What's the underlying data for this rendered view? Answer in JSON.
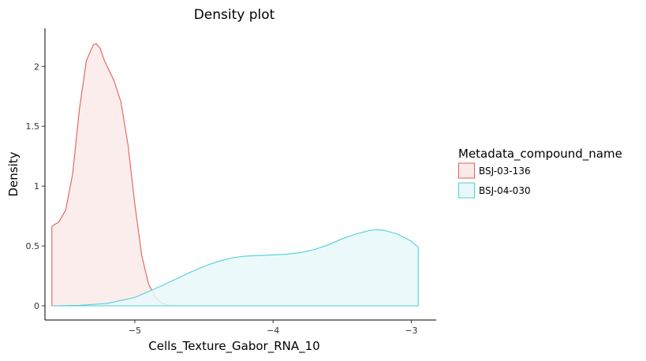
{
  "chart_data": {
    "type": "area",
    "title": "Density plot",
    "xlabel": "Cells_Texture_Gabor_RNA_10",
    "ylabel": "Density",
    "xlim": [
      -5.65,
      -2.82
    ],
    "ylim": [
      0,
      2.3
    ],
    "x_ticks": [
      -5,
      -4,
      -3
    ],
    "x_tick_labels": [
      "−5",
      "−4",
      "−3"
    ],
    "y_ticks": [
      0,
      0.5,
      1,
      1.5,
      2
    ],
    "y_tick_labels": [
      "0",
      "0.5",
      "1",
      "1.5",
      "2"
    ],
    "grid": false,
    "legend": {
      "title": "Metadata_compound_name",
      "position": "right"
    },
    "series": [
      {
        "name": "BSJ-03-136",
        "color": "#e0605a",
        "fill": "#fbeaea",
        "x": [
          -5.6,
          -5.58,
          -5.55,
          -5.5,
          -5.45,
          -5.4,
          -5.35,
          -5.3,
          -5.28,
          -5.25,
          -5.22,
          -5.2,
          -5.15,
          -5.1,
          -5.05,
          -5.0,
          -4.95,
          -4.9,
          -4.85,
          -4.8,
          -4.75,
          -4.7,
          -4.6,
          -4.2,
          -3.8,
          -3.4,
          -2.95
        ],
        "y": [
          0.66,
          0.68,
          0.7,
          0.8,
          1.1,
          1.65,
          2.05,
          2.18,
          2.19,
          2.15,
          2.05,
          2.0,
          1.88,
          1.7,
          1.35,
          0.85,
          0.42,
          0.18,
          0.07,
          0.02,
          0.005,
          0.002,
          0.001,
          0.0,
          0.0,
          0.0,
          0.0
        ]
      },
      {
        "name": "BSJ-04-030",
        "color": "#4fd0d8",
        "fill": "#e8f8f9",
        "x": [
          -5.6,
          -5.4,
          -5.2,
          -5.0,
          -4.8,
          -4.6,
          -4.5,
          -4.4,
          -4.3,
          -4.2,
          -4.1,
          -4.0,
          -3.9,
          -3.8,
          -3.7,
          -3.6,
          -3.5,
          -3.4,
          -3.3,
          -3.25,
          -3.2,
          -3.1,
          -3.0,
          -2.95
        ],
        "y": [
          0.0,
          0.004,
          0.02,
          0.07,
          0.17,
          0.28,
          0.33,
          0.37,
          0.4,
          0.415,
          0.42,
          0.425,
          0.432,
          0.445,
          0.47,
          0.51,
          0.56,
          0.6,
          0.63,
          0.635,
          0.632,
          0.6,
          0.54,
          0.49
        ]
      }
    ]
  }
}
